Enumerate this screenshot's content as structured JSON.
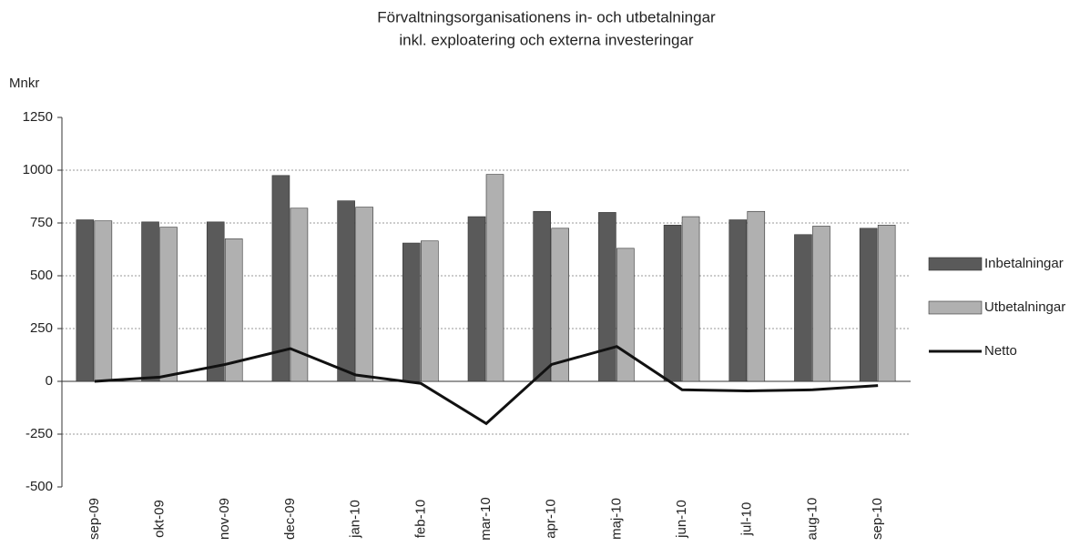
{
  "chart_data": {
    "type": "bar_line",
    "title": "Förvaltningsorganisationens in- och utbetalningar",
    "subtitle": "inkl. exploatering och externa investeringar",
    "y_label": "Mnkr",
    "categories": [
      "sep-09",
      "okt-09",
      "nov-09",
      "dec-09",
      "jan-10",
      "feb-10",
      "mar-10",
      "apr-10",
      "maj-10",
      "jun-10",
      "jul-10",
      "aug-10",
      "sep-10"
    ],
    "series": [
      {
        "name": "Inbetalningar",
        "type": "bar",
        "color": "#5a5a5a",
        "values": [
          765,
          755,
          755,
          975,
          855,
          655,
          780,
          805,
          800,
          740,
          765,
          695,
          725
        ]
      },
      {
        "name": "Utbetalningar",
        "type": "bar",
        "color": "#b0b0b0",
        "values": [
          760,
          730,
          675,
          820,
          825,
          665,
          980,
          725,
          630,
          780,
          805,
          735,
          740
        ]
      },
      {
        "name": "Netto",
        "type": "line",
        "color": "#111111",
        "values": [
          0,
          20,
          80,
          155,
          30,
          -10,
          -200,
          80,
          165,
          -40,
          -45,
          -40,
          -20
        ]
      }
    ],
    "ylim": [
      -500,
      1250
    ],
    "yticks": [
      -500,
      -250,
      0,
      250,
      500,
      750,
      1000,
      1250
    ],
    "grid": true,
    "legend": "right"
  }
}
